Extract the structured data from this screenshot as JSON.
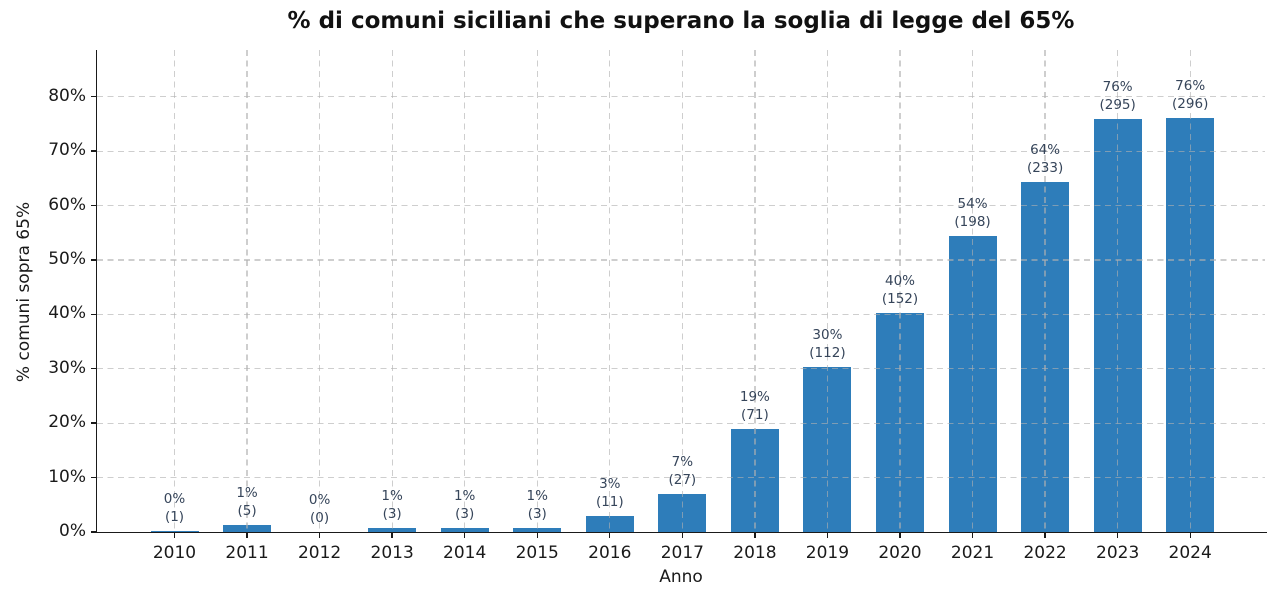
{
  "figure": {
    "background": "#ffffff"
  },
  "chart_data": {
    "type": "bar",
    "title": "% di comuni siciliani che superano la soglia di legge del 65%",
    "xlabel": "Anno",
    "ylabel": "% comuni sopra 65%",
    "categories": [
      "2010",
      "2011",
      "2012",
      "2013",
      "2014",
      "2015",
      "2016",
      "2017",
      "2018",
      "2019",
      "2020",
      "2021",
      "2022",
      "2023",
      "2024"
    ],
    "values": [
      0.2,
      1.3,
      0,
      0.8,
      0.8,
      0.8,
      3.0,
      7.0,
      19.0,
      30.3,
      40.3,
      54.4,
      64.3,
      75.9,
      76.1
    ],
    "bar_labels_pct": [
      "0%",
      "1%",
      "0%",
      "1%",
      "1%",
      "1%",
      "3%",
      "7%",
      "19%",
      "30%",
      "40%",
      "54%",
      "64%",
      "76%",
      "76%"
    ],
    "bar_labels_count": [
      "(1)",
      "(5)",
      "(0)",
      "(3)",
      "(3)",
      "(3)",
      "(11)",
      "(27)",
      "(71)",
      "(112)",
      "(152)",
      "(198)",
      "(233)",
      "(295)",
      "(296)"
    ],
    "ytick_values": [
      0,
      10,
      20,
      30,
      40,
      50,
      60,
      70,
      80
    ],
    "ytick_labels": [
      "0%",
      "10%",
      "20%",
      "30%",
      "40%",
      "50%",
      "60%",
      "70%",
      "80%"
    ],
    "ylim": [
      0,
      88.6
    ],
    "grid": {
      "style": "dashed",
      "horizontal": true,
      "vertical": true
    },
    "legend": null,
    "colors": {
      "bar": "#2e7dba",
      "annotation": "#36455a",
      "grid": "#b0b0b0",
      "axis": "#1a1a1a",
      "text": "#1a1a1a",
      "background": "#ffffff"
    }
  }
}
